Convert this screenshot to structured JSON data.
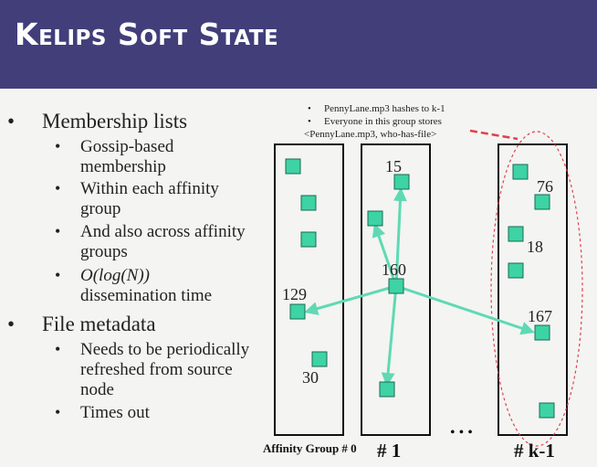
{
  "slide": {
    "title": "Kelips Soft State"
  },
  "bullets": [
    {
      "text": "Membership lists",
      "children": [
        {
          "text": "Gossip-based membership"
        },
        {
          "text": "Within each affinity group"
        },
        {
          "text": "And also across affinity groups"
        },
        {
          "text_italic": "O(log(N))",
          "text": "dissemination time"
        }
      ]
    },
    {
      "text": "File metadata",
      "children": [
        {
          "text": "Needs to be periodically refreshed from source node"
        },
        {
          "text": "Times out"
        }
      ]
    }
  ],
  "note": {
    "lines": [
      "PennyLane.mp3 hashes to k-1",
      "Everyone in this group stores"
    ],
    "tuple": "<PennyLane.mp3, who-has-file>"
  },
  "groups": {
    "label_0": "Affinity Group # 0",
    "label_1": "# 1",
    "label_k": "# k-1",
    "ellipsis": "• • •"
  },
  "nodes": {
    "n15": "15",
    "n160": "160",
    "n129": "129",
    "n30": "30",
    "n76": "76",
    "n18": "18",
    "n167": "167"
  },
  "colors": {
    "title_bar": "#413e7a",
    "node_fill": "#3dd3a4",
    "arrow": "#5fd9b4",
    "dashed": "#e0404a"
  }
}
